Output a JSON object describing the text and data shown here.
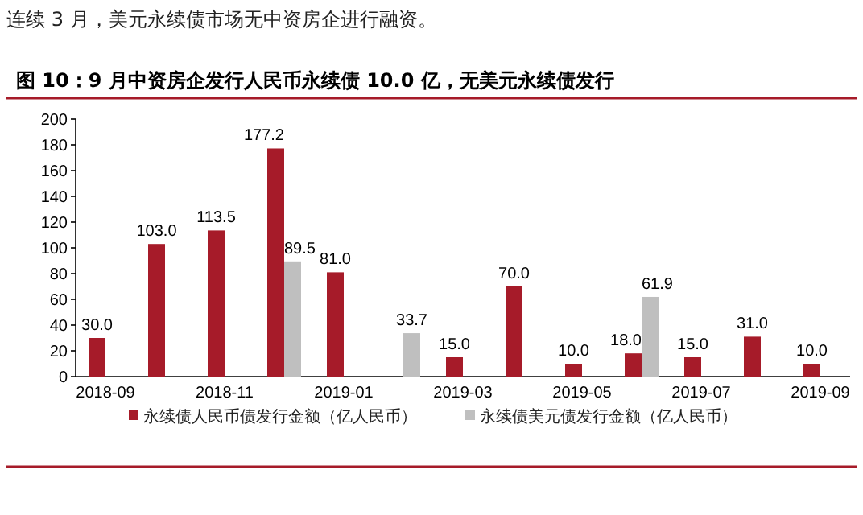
{
  "chart_data": {
    "type": "bar",
    "title": "图 10：9 月中资房企发行人民币永续债 10.0 亿，无美元永续债发行",
    "annotations": [
      "连续 3 月，美元永续债市场无中资房企进行融资。"
    ],
    "categories": [
      "2018-09",
      null,
      "2018-11",
      null,
      "2019-01",
      null,
      "2019-03",
      null,
      "2019-05",
      null,
      "2019-07",
      null,
      "2019-09"
    ],
    "series": [
      {
        "name": "永续债人民币债发行金额（亿人民币）",
        "color": "#a61b29",
        "values": [
          30.0,
          103.0,
          113.5,
          177.2,
          81.0,
          null,
          15.0,
          70.0,
          10.0,
          18.0,
          15.0,
          31.0,
          10.0
        ],
        "value_labels": [
          "30.0",
          "103.0",
          "113.5",
          "177.2",
          "81.0",
          null,
          "15.0",
          "70.0",
          "10.0",
          "18.0",
          "15.0",
          "31.0",
          "10.0"
        ]
      },
      {
        "name": "永续债美元债发行金额（亿人民币）",
        "color": "#bfbfbf",
        "values": [
          null,
          null,
          null,
          89.5,
          null,
          33.7,
          null,
          null,
          null,
          61.9,
          null,
          null,
          null
        ],
        "value_labels": [
          null,
          null,
          null,
          "89.5",
          null,
          "33.7",
          null,
          null,
          null,
          "61.9",
          null,
          null,
          null
        ]
      }
    ],
    "ylim": [
      0,
      200
    ],
    "yticks": [
      0,
      20,
      40,
      60,
      80,
      100,
      120,
      140,
      160,
      180,
      200
    ],
    "legend": "bottom",
    "grid": false
  }
}
